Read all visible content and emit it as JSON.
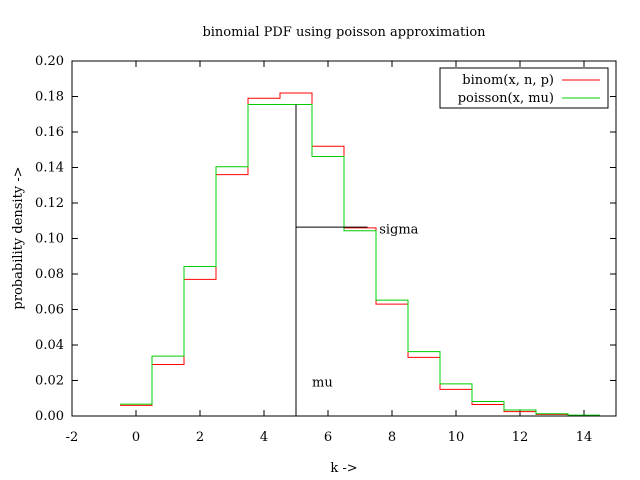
{
  "chart_data": {
    "type": "line",
    "title": "binomial PDF using poisson approximation",
    "xlabel": "k ->",
    "ylabel": "probability density ->",
    "xlim": [
      -2,
      15
    ],
    "ylim": [
      0,
      0.2
    ],
    "xticks": [
      -2,
      0,
      2,
      4,
      6,
      8,
      10,
      12,
      14
    ],
    "xtick_labels": [
      "-2",
      "0",
      "2",
      "4",
      "6",
      "8",
      "10",
      "12",
      "14"
    ],
    "yticks": [
      0,
      0.02,
      0.04,
      0.06,
      0.08,
      0.1,
      0.12,
      0.14,
      0.16,
      0.18,
      0.2
    ],
    "ytick_labels": [
      "0.00",
      "0.02",
      "0.04",
      "0.06",
      "0.08",
      "0.10",
      "0.12",
      "0.14",
      "0.16",
      "0.18",
      "0.20"
    ],
    "step_style": "histeps",
    "legend_position": "top-right",
    "series": [
      {
        "name": "binom(x, n, p)",
        "color": "#ff0000",
        "x": [
          0,
          1,
          2,
          3,
          4,
          5,
          6,
          7,
          8,
          9,
          10,
          11,
          12,
          13,
          14
        ],
        "values": [
          0.006,
          0.029,
          0.077,
          0.136,
          0.179,
          0.182,
          0.152,
          0.106,
          0.063,
          0.033,
          0.015,
          0.0065,
          0.0025,
          0.0009,
          0.0003
        ]
      },
      {
        "name": "poisson(x, mu)",
        "color": "#00cc00",
        "x": [
          0,
          1,
          2,
          3,
          4,
          5,
          6,
          7,
          8,
          9,
          10,
          11,
          12,
          13,
          14
        ],
        "values": [
          0.0067,
          0.0337,
          0.0842,
          0.1404,
          0.1755,
          0.1755,
          0.1462,
          0.1044,
          0.0653,
          0.0363,
          0.0181,
          0.0082,
          0.0034,
          0.0013,
          0.0005
        ]
      }
    ],
    "annotations": [
      {
        "label": "mu",
        "kind": "vertical",
        "x": 5,
        "y_from": 0,
        "y_to": 0.1755,
        "label_x": 5.5,
        "label_y": 0.019
      },
      {
        "label": "sigma",
        "kind": "horizontal",
        "y": 0.1064,
        "x_from": 5,
        "x_to": 7.236,
        "label_x": 7.6,
        "label_y": 0.105
      }
    ]
  }
}
